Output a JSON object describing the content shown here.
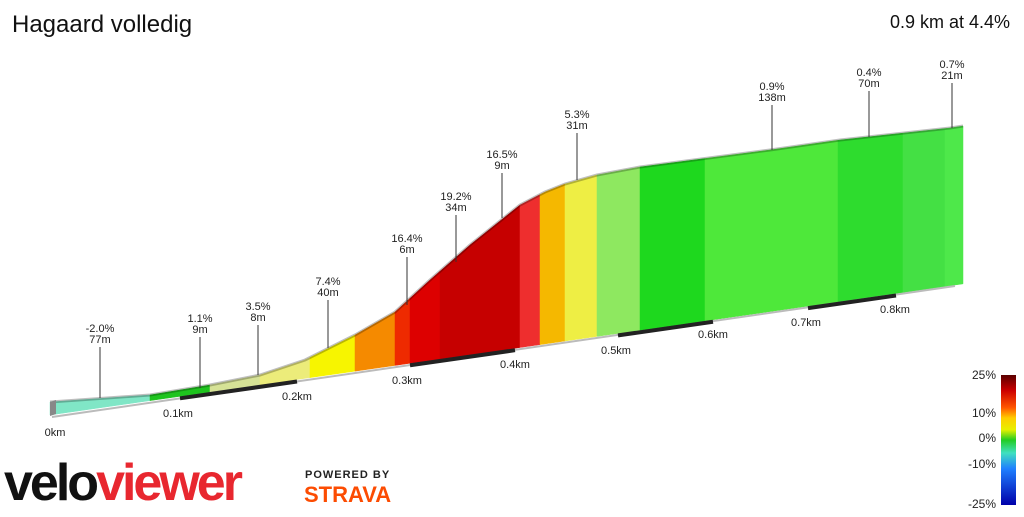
{
  "header": {
    "title": "Hagaard volledig",
    "summary": "0.9 km at 4.4%"
  },
  "annotations": [
    {
      "grade": "-2.0%",
      "length": "77m"
    },
    {
      "grade": "1.1%",
      "length": "9m"
    },
    {
      "grade": "3.5%",
      "length": "8m"
    },
    {
      "grade": "7.4%",
      "length": "40m"
    },
    {
      "grade": "16.4%",
      "length": "6m"
    },
    {
      "grade": "19.2%",
      "length": "34m"
    },
    {
      "grade": "16.5%",
      "length": "9m"
    },
    {
      "grade": "5.3%",
      "length": "31m"
    },
    {
      "grade": "0.9%",
      "length": "138m"
    },
    {
      "grade": "0.4%",
      "length": "70m"
    },
    {
      "grade": "0.7%",
      "length": "21m"
    }
  ],
  "distance_labels": [
    "0km",
    "0.1km",
    "0.2km",
    "0.3km",
    "0.4km",
    "0.5km",
    "0.6km",
    "0.7km",
    "0.8km"
  ],
  "legend": {
    "labels": [
      "25%",
      "10%",
      "0%",
      "-10%",
      "-25%"
    ]
  },
  "logo": {
    "velo": "velo",
    "viewer": "viewer",
    "powered_by": "POWERED BY",
    "strava": "STRAVA"
  }
}
